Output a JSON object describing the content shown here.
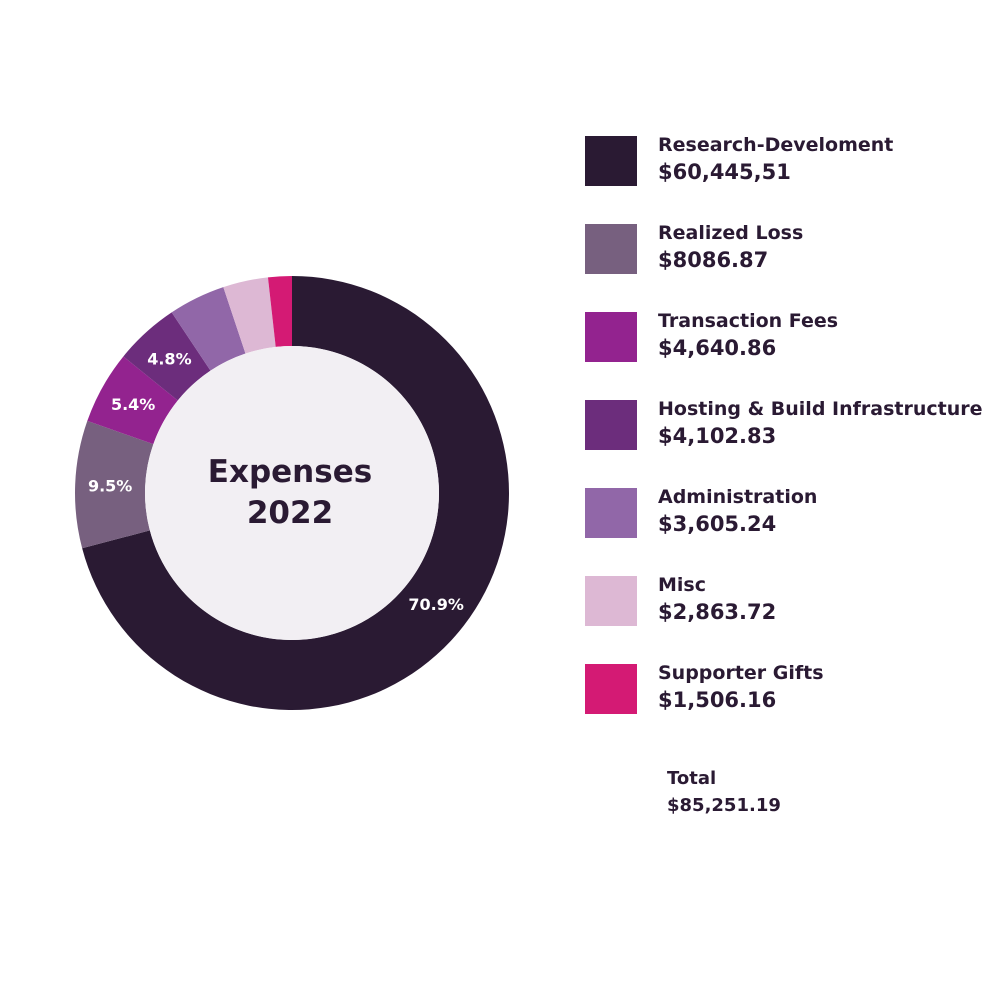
{
  "chart_data": {
    "type": "pie",
    "title": "Expenses 2022",
    "center_label_lines": [
      "Expenses",
      "2022"
    ],
    "categories": [
      "Research-Develoment",
      "Realized Loss",
      "Transaction Fees",
      "Hosting & Build Infrastructure",
      "Administration",
      "Misc",
      "Supporter Gifts"
    ],
    "value_labels": [
      "$60,445,51",
      "$8086.87",
      "$4,640.86",
      "$4,102.83",
      "$3,605.24",
      "$2,863.72",
      "$1,506.16"
    ],
    "values": [
      60445.51,
      8086.87,
      4640.86,
      4102.83,
      3605.24,
      2863.72,
      1506.16
    ],
    "slice_labels": [
      "70.9%",
      "9.5%",
      "5.4%",
      "4.8%",
      "",
      "",
      ""
    ],
    "colors": [
      "#2a1a33",
      "#77607f",
      "#93238f",
      "#6c2d7c",
      "#9167a8",
      "#ddb8d4",
      "#d41a74"
    ],
    "inner_color": "#f2eff3",
    "total_label": "Total",
    "total_value": "$85,251.19"
  }
}
